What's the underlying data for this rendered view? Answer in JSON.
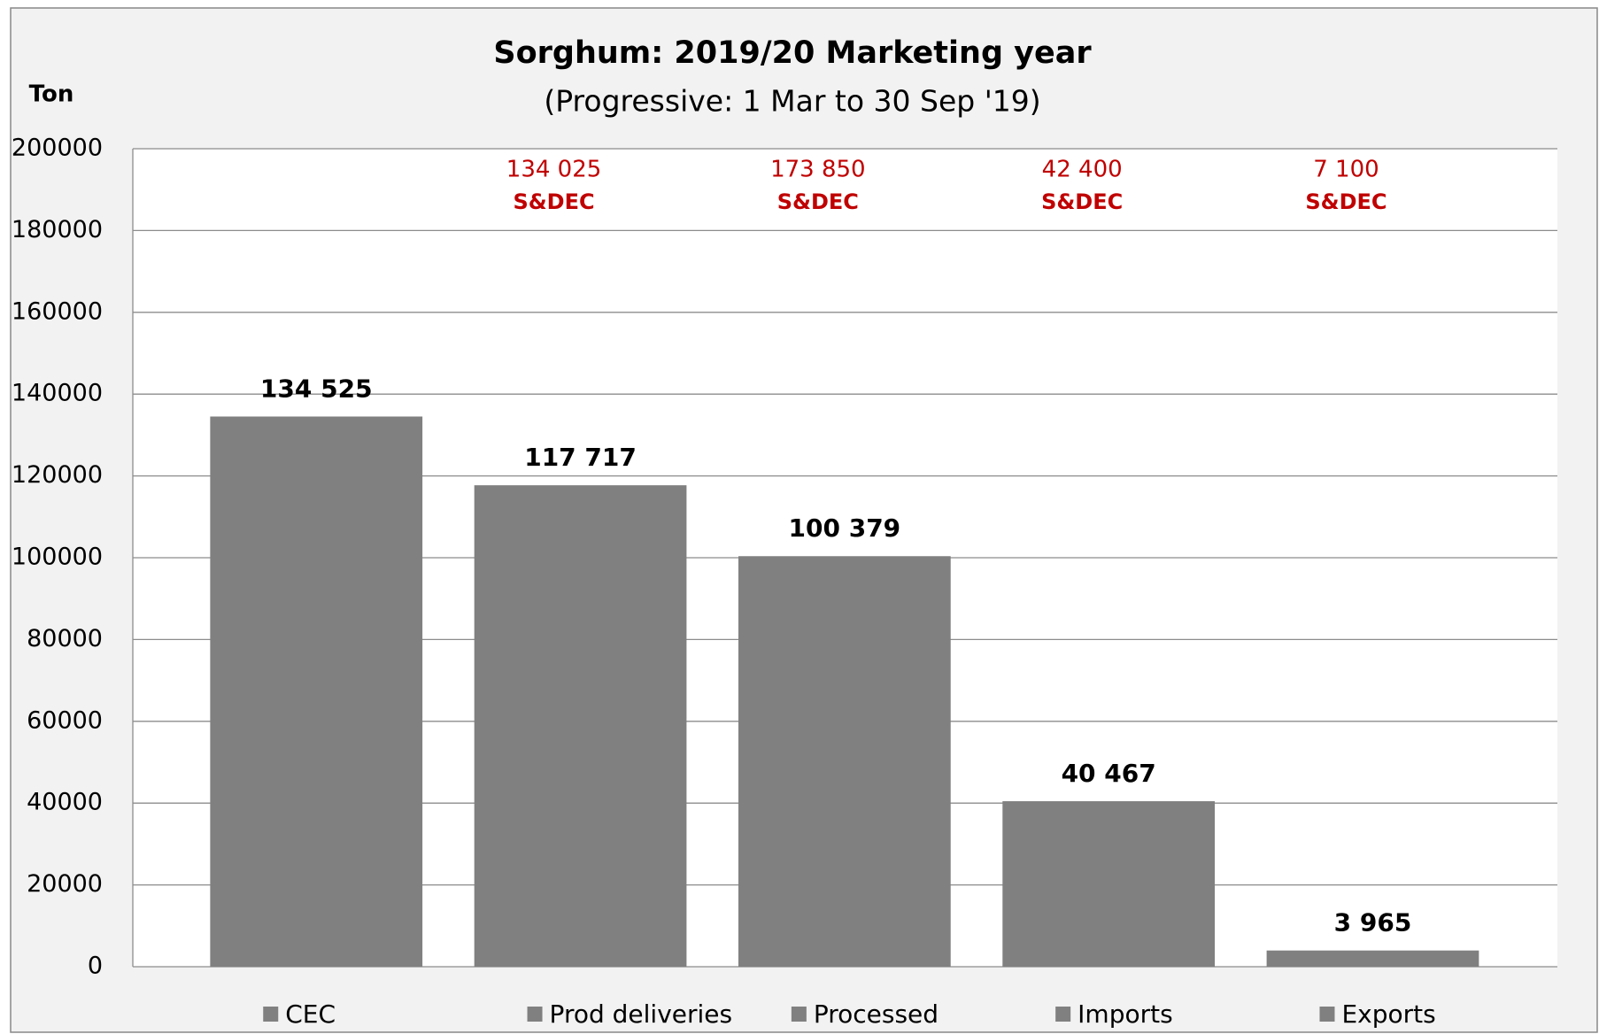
{
  "chart_data": {
    "type": "bar",
    "title": "Sorghum:  2019/20 Marketing year",
    "subtitle": "(Progressive: 1 Mar to 30 Sep '19)",
    "y_label": "Ton",
    "categories": [
      "CEC",
      "Prod deliveries",
      "Processed",
      "Imports",
      "Exports"
    ],
    "values": [
      134525,
      117717,
      100379,
      40467,
      3965
    ],
    "value_labels": [
      "134 525",
      "117 717",
      "100 379",
      "40 467",
      "3 965"
    ],
    "color": "#808080",
    "ylim": [
      0,
      200000
    ],
    "yticks": [
      0,
      20000,
      40000,
      60000,
      80000,
      100000,
      120000,
      140000,
      160000,
      180000,
      200000
    ],
    "grid": true,
    "legend": "bottom",
    "annotations": [
      {
        "category": "Prod deliveries",
        "label": "134 025",
        "source": "S&DEC"
      },
      {
        "category": "Processed",
        "label": "173 850",
        "source": "S&DEC"
      },
      {
        "category": "Imports",
        "label": "42 400",
        "source": "S&DEC"
      },
      {
        "category": "Exports",
        "label": "7 100",
        "source": "S&DEC"
      }
    ]
  }
}
